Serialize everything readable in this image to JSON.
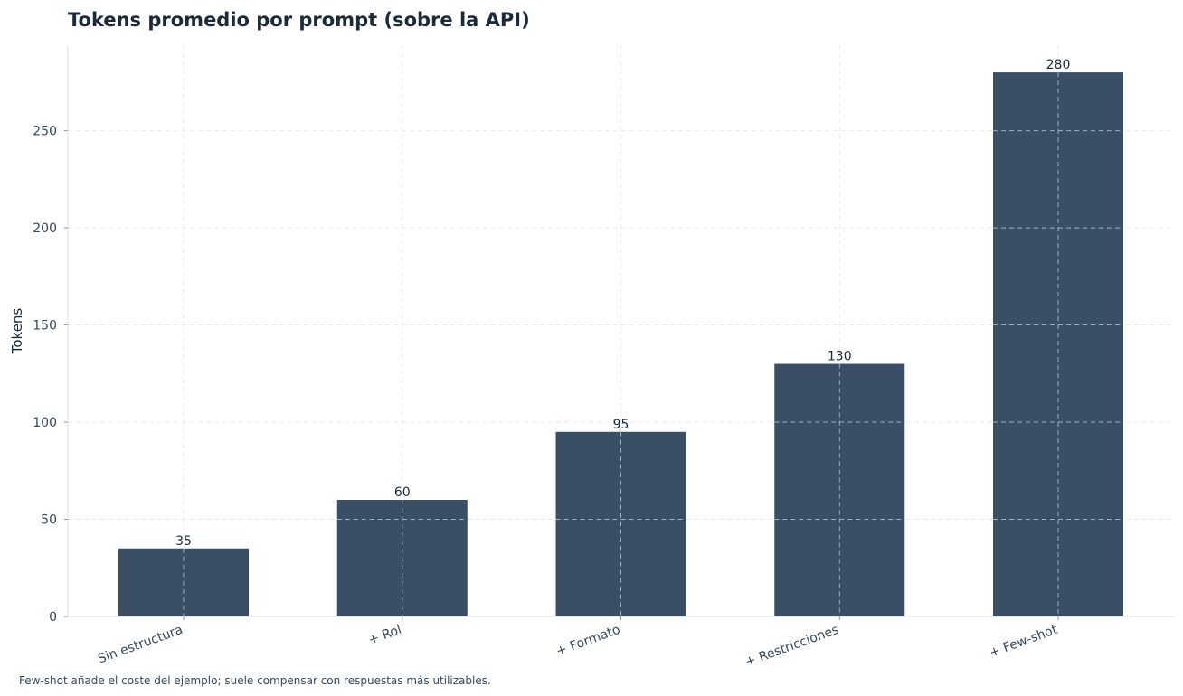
{
  "chart_data": {
    "type": "bar",
    "title": "Tokens promedio por prompt (sobre la API)",
    "xlabel": "",
    "ylabel": "Tokens",
    "categories": [
      "Sin estructura",
      "+ Rol",
      "+ Formato",
      "+ Restricciones",
      "+ Few-shot"
    ],
    "values": [
      35,
      60,
      95,
      130,
      280
    ],
    "ylim": [
      0,
      294
    ],
    "yticks": [
      0,
      50,
      100,
      150,
      200,
      250
    ],
    "grid": true,
    "legend": "none",
    "bar_color": "#3a4f66",
    "footnote": "Few-shot añade el coste del ejemplo; suele compensar con respuestas más utilizables."
  }
}
